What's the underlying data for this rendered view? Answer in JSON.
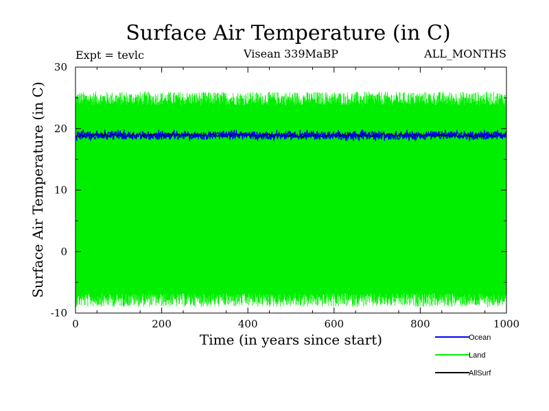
{
  "chart_data": {
    "type": "line",
    "title": "Surface Air Temperature (in C)",
    "subtitle_left": "Expt = tevlc",
    "subtitle_center": "Visean 339MaBP",
    "subtitle_right": "ALL_MONTHS",
    "xlabel": "Time (in years since start)",
    "ylabel": "Surface Air Temperature (in C)",
    "xlim": [
      0,
      1000
    ],
    "ylim": [
      -10,
      30
    ],
    "xticks": [
      0,
      200,
      400,
      600,
      800,
      1000
    ],
    "yticks": [
      -10,
      0,
      10,
      20,
      30
    ],
    "x_step_years": 1,
    "series": [
      {
        "name": "Land",
        "color": "#00ee00",
        "mean": 8.5,
        "band_low": -8.0,
        "band_high": 25.0,
        "extreme_low": -9.0,
        "extreme_high": 26.0
      },
      {
        "name": "Ocean",
        "color": "#0000ee",
        "mean": 18.9,
        "band_low": 18.2,
        "band_high": 19.6,
        "extreme_low": 18.0,
        "extreme_high": 19.8
      },
      {
        "name": "AllSurf",
        "color": "#000000",
        "mean": 18.9,
        "band_low": 18.6,
        "band_high": 19.2,
        "extreme_low": 18.5,
        "extreme_high": 19.3
      }
    ],
    "legend": [
      {
        "label": "Ocean",
        "color": "#0000ee"
      },
      {
        "label": "Land",
        "color": "#00ee00"
      },
      {
        "label": "AllSurf",
        "color": "#000000"
      }
    ]
  }
}
